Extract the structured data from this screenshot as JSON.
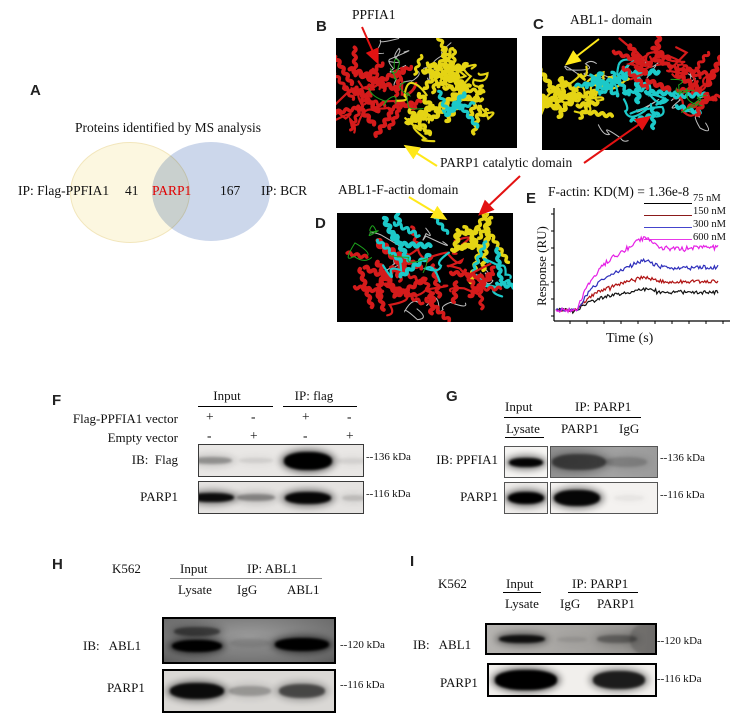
{
  "figure": {
    "panels": {
      "A": {
        "letter": "A",
        "title": "Proteins identified by MS analysis",
        "left_label": "IP: Flag-PPFIA1",
        "left_count": "41",
        "overlap_label": "PARP1",
        "right_count": "167",
        "right_label": "IP: BCR",
        "left_fill": "#fcf7e0",
        "right_fill": "#ccd7eb",
        "overlap_text_color": "#e10000"
      },
      "B": {
        "letter": "B",
        "annotation": "PPFIA1"
      },
      "C": {
        "letter": "C",
        "annotation": "ABL1- domain"
      },
      "D": {
        "letter": "D",
        "annotation": "ABL1-F-actin domain"
      },
      "shared_annotation": "PARP1 catalytic domain",
      "E": {
        "letter": "E",
        "title": "F-actin: KD(M) = 1.36e-8",
        "ylabel": "Response (RU)",
        "xlabel": "Time (s)",
        "legend": [
          {
            "label": "75 nM",
            "color": "#000000"
          },
          {
            "label": "150 nM",
            "color": "#8b1a1a"
          },
          {
            "label": "300 nM",
            "color": "#4444cc"
          },
          {
            "label": "600 nM",
            "color": "#e838e8"
          }
        ]
      },
      "F": {
        "letter": "F",
        "group_headers": [
          "Input",
          "IP: flag"
        ],
        "condition_rows": [
          {
            "label": "Flag-PPFIA1 vector",
            "values": [
              "+",
              "-",
              "+",
              "-"
            ]
          },
          {
            "label": "Empty vector",
            "values": [
              "-",
              "+",
              "-",
              "+"
            ]
          }
        ],
        "blot_rows": [
          {
            "label": "IB:  Flag",
            "marker": "--136 kDa"
          },
          {
            "label": "PARP1",
            "marker": "--116 kDa"
          }
        ]
      },
      "G": {
        "letter": "G",
        "group_headers": [
          "Input",
          "IP: PARP1"
        ],
        "lane_headers": [
          "Lysate",
          "PARP1",
          "IgG"
        ],
        "blot_rows": [
          {
            "label": "IB: PPFIA1",
            "marker": "--136 kDa"
          },
          {
            "label": "PARP1",
            "marker": "--116 kDa"
          }
        ]
      },
      "H": {
        "letter": "H",
        "cell_line": "K562",
        "group_headers": [
          "Input",
          "IP: ABL1"
        ],
        "lane_headers": [
          "Lysate",
          "IgG",
          "ABL1"
        ],
        "blot_rows": [
          {
            "label": "IB:   ABL1",
            "marker": "--120 kDa"
          },
          {
            "label": "PARP1",
            "marker": "--116 kDa"
          }
        ]
      },
      "I": {
        "letter": "I",
        "cell_line": "K562",
        "group_headers": [
          "Input",
          "IP: PARP1"
        ],
        "lane_headers": [
          "Lysate",
          "IgG",
          "PARP1"
        ],
        "blot_rows": [
          {
            "label": "IB:   ABL1",
            "marker": "--120 kDa"
          },
          {
            "label": "PARP1",
            "marker": "--116 kDa"
          }
        ]
      }
    }
  },
  "chart_data": {
    "type": "line",
    "title": "F-actin: KD(M) = 1.36e-8",
    "xlabel": "Time (s)",
    "ylabel": "Response (RU)",
    "kd_molar": "1.36e-8",
    "axis_tick_labels": "none (unlabeled ticks)",
    "legend_position": "upper right outside plot",
    "series": [
      {
        "name": "75 nM",
        "color": "#000000",
        "plateau_response_relative": 0.29
      },
      {
        "name": "150 nM",
        "color": "#8b1a1a",
        "plateau_response_relative": 0.46
      },
      {
        "name": "300 nM",
        "color": "#4444cc",
        "plateau_response_relative": 0.69
      },
      {
        "name": "600 nM",
        "color": "#e838e8",
        "plateau_response_relative": 1.0
      }
    ],
    "shape": "SPR sensorgram: flat baseline, association rise, slight overshoot, small dissociation step to noisy steady plateau"
  }
}
